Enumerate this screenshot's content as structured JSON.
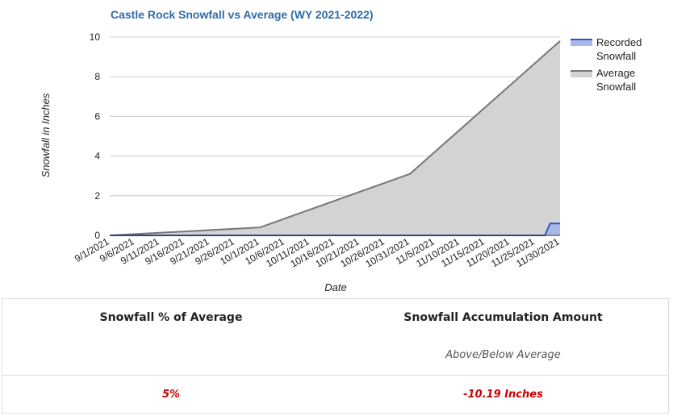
{
  "chart_data": {
    "type": "area",
    "title": "Castle Rock Snowfall vs Average (WY 2021-2022)",
    "xlabel": "Date",
    "ylabel": "Snowfall in Inches",
    "ylim": [
      0,
      10
    ],
    "yticks": [
      "0",
      "2",
      "4",
      "6",
      "8",
      "10"
    ],
    "categories": [
      "9/1/2021",
      "9/6/2021",
      "9/11/2021",
      "9/16/2021",
      "9/21/2021",
      "9/26/2021",
      "10/1/2021",
      "10/6/2021",
      "10/11/2021",
      "10/16/2021",
      "10/21/2021",
      "10/26/2021",
      "10/31/2021",
      "11/5/2021",
      "11/10/2021",
      "11/15/2021",
      "11/20/2021",
      "11/25/2021",
      "11/30/2021"
    ],
    "grid": true,
    "legend_position": "right",
    "series": [
      {
        "name": "Recorded Snowfall",
        "color": "#3355cc",
        "fill": "#aab8e8",
        "points": [
          {
            "x": "9/1/2021",
            "y": 0
          },
          {
            "x": "11/27/2021",
            "y": 0
          },
          {
            "x": "11/28/2021",
            "y": 0.6
          },
          {
            "x": "11/30/2021",
            "y": 0.6
          }
        ]
      },
      {
        "name": "Average Snowfall",
        "color": "#777777",
        "fill": "#d3d3d3",
        "points": [
          {
            "x": "9/1/2021",
            "y": 0
          },
          {
            "x": "10/1/2021",
            "y": 0.4
          },
          {
            "x": "10/31/2021",
            "y": 3.1
          },
          {
            "x": "11/30/2021",
            "y": 9.8
          }
        ]
      }
    ]
  },
  "legend": {
    "recorded": [
      "Recorded",
      "Snowfall"
    ],
    "average": [
      "Average",
      "Snowfall"
    ]
  },
  "stats": {
    "pct_heading": "Snowfall % of Average",
    "accum_heading": "Snowfall Accumulation Amount",
    "accum_sub": "Above/Below Average",
    "pct_value": "5%",
    "accum_value": "-10.19 Inches"
  }
}
